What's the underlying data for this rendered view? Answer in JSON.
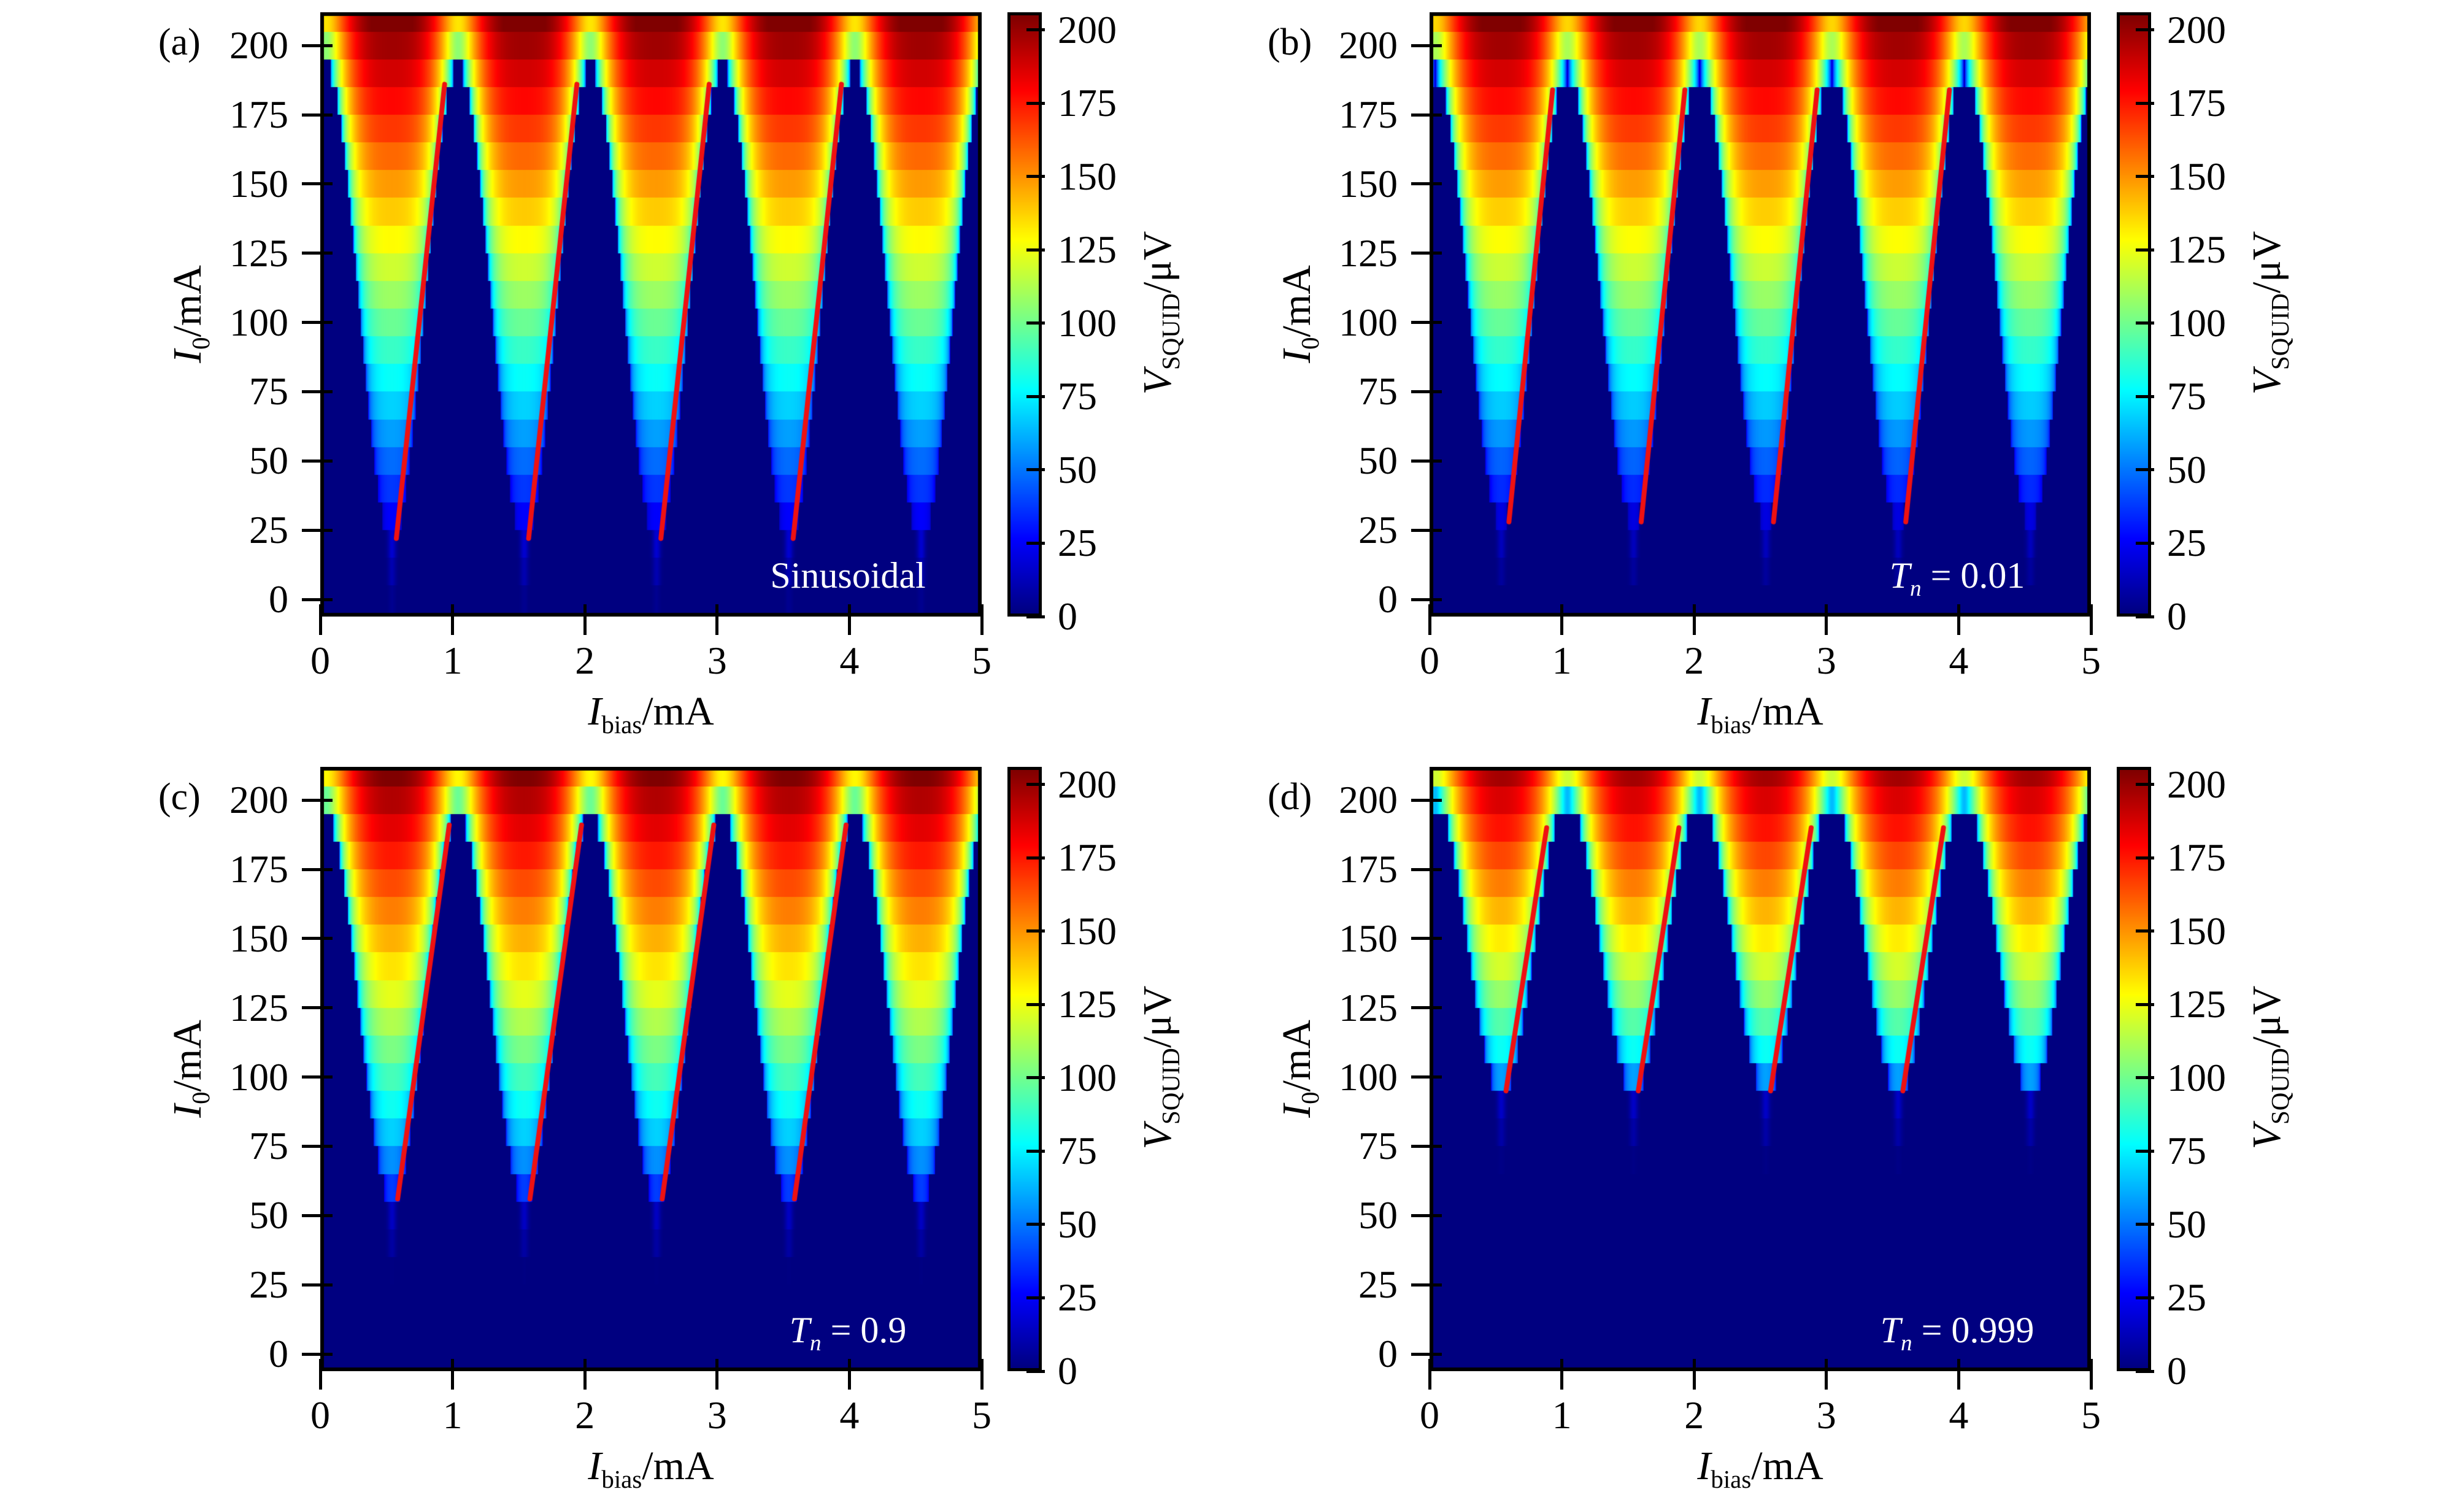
{
  "figure": {
    "background": "#ffffff"
  },
  "axes": {
    "x_label": {
      "sym": "I",
      "sub": "bias",
      "unit": "/mA"
    },
    "y_label": {
      "sym": "I",
      "sub": "0",
      "unit": "/mA"
    },
    "x_tick_labels": [
      "0",
      "1",
      "2",
      "3",
      "4",
      "5"
    ],
    "y_tick_labels": [
      "0",
      "25",
      "50",
      "75",
      "100",
      "125",
      "150",
      "175",
      "200"
    ]
  },
  "colorbar": {
    "label": {
      "sym": "V",
      "sub": "SQUID",
      "unit": "/μV"
    },
    "tick_labels": [
      "0",
      "25",
      "50",
      "75",
      "100",
      "125",
      "150",
      "175",
      "200"
    ],
    "colormap": "jet"
  },
  "colors": {
    "red_line": "#ee1111",
    "annotation_text": "#ffffff",
    "axis_color": "#000000",
    "background_low": "#000084"
  },
  "chart_data": {
    "type": "heatmap",
    "title": "",
    "xlabel": "I_bias/mA",
    "ylabel": "I_0/mA",
    "colorbar_label": "V_SQUID/μV",
    "x_range": [
      0,
      5
    ],
    "y_range": [
      -6.2,
      212
    ],
    "v_range": [
      0,
      206
    ],
    "grid": false,
    "model": {
      "description": "V=0 below modulated critical current Ic(x); Ic periodic in I_bias with period 1 mA; V = I0*(1-(Ic/I0)^2)^0.25 above Ic; rows sampled every 10 mA",
      "period_mA": 1.0,
      "ic_max_x": 0.04,
      "ic_min_x": 0.54,
      "row_step_mA": 10,
      "row_top_mA": 210,
      "row_bottom_mA": -10,
      "v_exponent": 0.25,
      "tip_glow": {
        "amp": 17,
        "width_c2": 0.01,
        "depth_mA": 26
      }
    },
    "panels": [
      {
        "id": "a",
        "letter": "(a)",
        "ann_main": "Sinusoidal",
        "ann_sub": "",
        "ann_rest": "",
        "ann_italic": false,
        "ic_min_mA": 21,
        "ic_max_mA": 192,
        "red_line": {
          "x1": 0.575,
          "i1": 22,
          "x2": 0.94,
          "i2": 186,
          "count": 4,
          "spacing": 1.0
        }
      },
      {
        "id": "b",
        "letter": "(b)",
        "ann_main": "T",
        "ann_sub": "n",
        "ann_rest": " = 0.01",
        "ann_italic": true,
        "ic_min_mA": 27,
        "ic_max_mA": 190,
        "red_line": {
          "x1": 0.6,
          "i1": 28,
          "x2": 0.93,
          "i2": 184,
          "count": 4,
          "spacing": 1.0
        }
      },
      {
        "id": "c",
        "letter": "(c)",
        "ann_main": "T",
        "ann_sub": "n",
        "ann_rest": " = 0.9",
        "ann_italic": true,
        "ic_min_mA": 55,
        "ic_max_mA": 194,
        "red_line": {
          "x1": 0.585,
          "i1": 56,
          "x2": 0.975,
          "i2": 191,
          "count": 4,
          "spacing": 1.0
        }
      },
      {
        "id": "d",
        "letter": "(d)",
        "ann_main": "T",
        "ann_sub": "n",
        "ann_rest": " = 0.999",
        "ann_italic": true,
        "ic_min_mA": 94,
        "ic_max_mA": 199,
        "red_line": {
          "x1": 0.578,
          "i1": 95,
          "x2": 0.885,
          "i2": 190,
          "count": 4,
          "spacing": 1.0
        }
      }
    ]
  }
}
